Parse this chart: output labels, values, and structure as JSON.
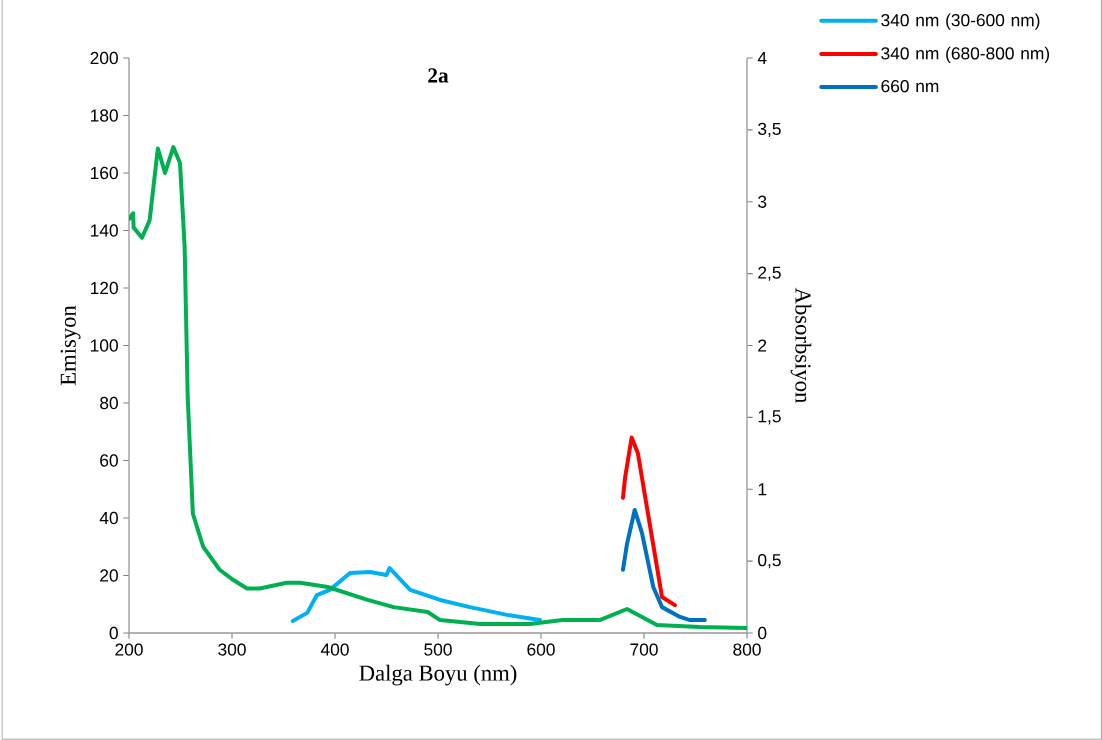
{
  "chart_data": {
    "type": "line",
    "title": "**2a**",
    "xlabel": "Dalga Boyu (nm)",
    "ylabel": "Emisyon",
    "y2label": "Absorbsiyon",
    "xlim": [
      200,
      800
    ],
    "xticks": [
      200,
      300,
      400,
      500,
      600,
      700,
      800
    ],
    "ylim": [
      0,
      200
    ],
    "yticks": [
      0,
      20,
      40,
      60,
      80,
      100,
      120,
      140,
      160,
      180,
      200
    ],
    "y2lim": [
      0,
      4
    ],
    "y2ticks": [
      0,
      {
        "value": 0.5,
        "label": "0,5"
      },
      1,
      {
        "value": 1.5,
        "label": "1,5"
      },
      2,
      {
        "value": 2.5,
        "label": "2,5"
      },
      3,
      {
        "value": 3.5,
        "label": "3,5"
      },
      4
    ],
    "legend": "top right",
    "grid": false,
    "series": [
      {
        "name": "340 nm (30-600 nm)",
        "color": "#00b0f0",
        "x": [
          359,
          373,
          382.5,
          395,
          414.6,
          434,
          450,
          453,
          473,
          502,
          531,
          567,
          599
        ],
        "values": [
          4.2,
          7,
          13.2,
          15,
          20.9,
          21.2,
          20.2,
          22.6,
          15,
          11.5,
          9,
          6.3,
          4.5
        ]
      },
      {
        "name": "340 nm (680-800 nm)",
        "color": "#ff0000",
        "x": [
          679.6,
          681.6,
          688,
          694,
          706,
          717.5,
          730
        ],
        "values": [
          47,
          54,
          68,
          62.6,
          37,
          12.5,
          9.7
        ]
      },
      {
        "name": "660 nm",
        "color": "#0070c0",
        "x": [
          679.6,
          683.5,
          691,
          698,
          709,
          717.5,
          735,
          744.6,
          759
        ],
        "values": [
          22,
          31,
          42.8,
          34.8,
          16,
          9,
          5.6,
          4.5,
          4.5
        ]
      },
      {
        "color": "#00b050",
        "axis": "y2",
        "x": [
          200,
          204,
          204.5,
          212.6,
          220,
          228,
          235,
          243,
          249.5,
          254,
          257,
          262,
          272,
          288,
          301,
          314.5,
          327,
          353,
          366,
          393,
          431.6,
          457,
          490,
          502,
          541,
          589,
          621,
          657,
          683.5,
          712.6,
          754,
          800
        ],
        "values": [
          2.88,
          2.92,
          2.82,
          2.75,
          2.87,
          3.37,
          3.2,
          3.38,
          3.27,
          2.69,
          1.64,
          0.83,
          0.6,
          0.44,
          0.37,
          0.31,
          0.31,
          0.35,
          0.35,
          0.32,
          0.23,
          0.18,
          0.146,
          0.09,
          0.063,
          0.063,
          0.09,
          0.09,
          0.167,
          0.056,
          0.042,
          0.035
        ]
      }
    ]
  }
}
